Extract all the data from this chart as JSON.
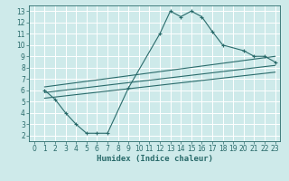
{
  "xlabel": "Humidex (Indice chaleur)",
  "bg_color": "#ceeaea",
  "grid_color": "#b8d8d8",
  "line_color": "#2a6b6b",
  "xlim": [
    -0.5,
    23.5
  ],
  "ylim": [
    1.5,
    13.5
  ],
  "xticks": [
    0,
    1,
    2,
    3,
    4,
    5,
    6,
    7,
    8,
    9,
    10,
    11,
    12,
    13,
    14,
    15,
    16,
    17,
    18,
    19,
    20,
    21,
    22,
    23
  ],
  "yticks": [
    2,
    3,
    4,
    5,
    6,
    7,
    8,
    9,
    10,
    11,
    12,
    13
  ],
  "curve1_x": [
    1,
    2,
    3,
    4,
    5,
    6,
    7,
    9,
    12,
    13,
    14,
    15,
    16,
    17,
    18,
    20,
    21,
    22,
    23
  ],
  "curve1_y": [
    6.0,
    5.2,
    4.0,
    3.0,
    2.2,
    2.2,
    2.2,
    6.2,
    11.0,
    13.0,
    12.5,
    13.0,
    12.5,
    11.2,
    10.0,
    9.5,
    9.0,
    9.0,
    8.5
  ],
  "line1_x": [
    1,
    23
  ],
  "line1_y": [
    6.3,
    9.0
  ],
  "line2_x": [
    1,
    23
  ],
  "line2_y": [
    5.8,
    8.2
  ],
  "line3_x": [
    1,
    23
  ],
  "line3_y": [
    5.3,
    7.6
  ],
  "tick_fontsize": 5.5,
  "label_fontsize": 6.5
}
